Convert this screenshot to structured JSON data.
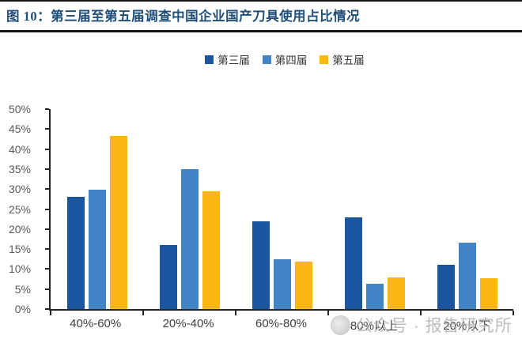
{
  "header": {
    "title": "图 10：第三届至第五届调查中国企业国产刀具使用占比情况"
  },
  "legend": [
    {
      "label": "第三届",
      "color": "#1B55A0"
    },
    {
      "label": "第四届",
      "color": "#4285C6"
    },
    {
      "label": "第五届",
      "color": "#FBB616"
    }
  ],
  "chart_data": {
    "type": "bar",
    "title": "第三届至第五届调查中国企业国产刀具使用占比情况",
    "categories": [
      "40%-60%",
      "20%-40%",
      "60%-80%",
      "80%以上",
      "20%以下"
    ],
    "series": [
      {
        "name": "第三届",
        "color": "#1B55A0",
        "values": [
          28,
          16,
          22,
          23,
          11
        ]
      },
      {
        "name": "第四届",
        "color": "#4285C6",
        "values": [
          29.8,
          35,
          12.5,
          6.3,
          16.7
        ]
      },
      {
        "name": "第五届",
        "color": "#FBB616",
        "values": [
          43.3,
          29.5,
          11.8,
          8,
          7.7
        ]
      }
    ],
    "xlabel": "",
    "ylabel": "",
    "ylim": [
      0,
      50
    ],
    "ytick_step": 5,
    "ytick_labels": [
      "0%",
      "5%",
      "10%",
      "15%",
      "20%",
      "25%",
      "30%",
      "35%",
      "40%",
      "45%",
      "50%"
    ],
    "grid": false,
    "legend_position": "top"
  },
  "watermark": {
    "text": "公众号 · 报告研究所",
    "logo": "circle-logo"
  }
}
